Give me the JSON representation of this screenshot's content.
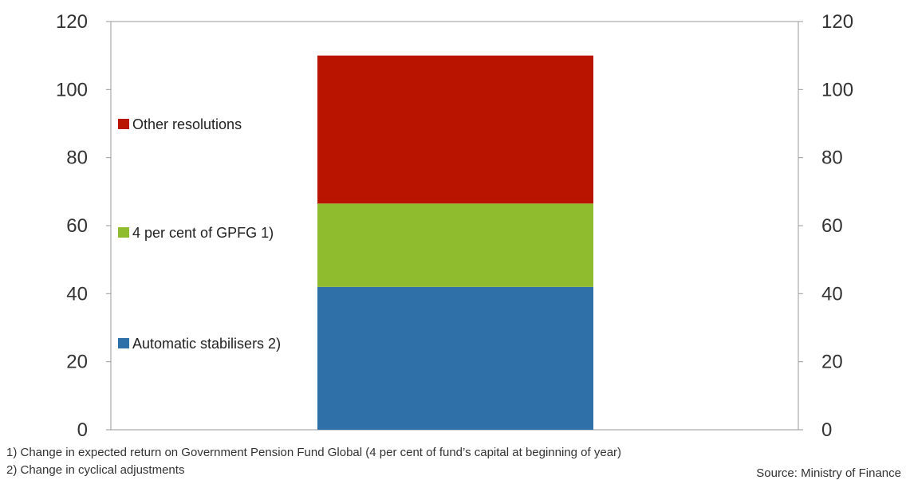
{
  "chart_data": {
    "type": "bar",
    "stacked": true,
    "categories": [
      ""
    ],
    "series": [
      {
        "name": "Automatic stabilisers 2)",
        "values": [
          42
        ],
        "color": "#3070a8"
      },
      {
        "name": "4 per cent of GPFG 1)",
        "values": [
          24.5
        ],
        "color": "#8fbc2e"
      },
      {
        "name": "Other resolutions",
        "values": [
          43.5
        ],
        "color": "#b81400"
      }
    ],
    "ylim": [
      0,
      120
    ],
    "yticks": [
      "0",
      "20",
      "40",
      "60",
      "80",
      "100",
      "120"
    ],
    "ytick_values": [
      0,
      20,
      40,
      60,
      80,
      100,
      120
    ],
    "y2ticks": [
      "0",
      "20",
      "40",
      "60",
      "80",
      "100",
      "120"
    ],
    "legend": [
      {
        "label": "Other resolutions",
        "color": "#b81400"
      },
      {
        "label": "4 per cent of GPFG 1)",
        "color": "#8fbc2e"
      },
      {
        "label": "Automatic stabilisers 2)",
        "color": "#3070a8"
      }
    ],
    "legend_placement": "left-inside",
    "grid": false
  },
  "footnotes": [
    "1)  Change in expected return on Government Pension Fund Global (4 per cent of fund’s capital at beginning of year)",
    "2)  Change in cyclical adjustments"
  ],
  "source": "Source: Ministry of Finance"
}
